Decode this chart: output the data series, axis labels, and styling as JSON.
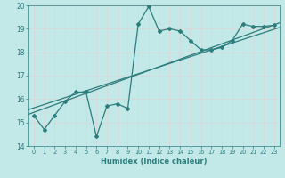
{
  "title": "",
  "xlabel": "Humidex (Indice chaleur)",
  "bg_color": "#c2e8e8",
  "grid_color": "#e8e8e8",
  "line_color": "#2d7d7d",
  "xlim": [
    -0.5,
    23.5
  ],
  "ylim": [
    14,
    20
  ],
  "xticks": [
    0,
    1,
    2,
    3,
    4,
    5,
    6,
    7,
    8,
    9,
    10,
    11,
    12,
    13,
    14,
    15,
    16,
    17,
    18,
    19,
    20,
    21,
    22,
    23
  ],
  "yticks": [
    14,
    15,
    16,
    17,
    18,
    19,
    20
  ],
  "scatter_x": [
    0,
    1,
    2,
    3,
    4,
    5,
    6,
    7,
    8,
    9,
    10,
    11,
    12,
    13,
    14,
    15,
    16,
    17,
    18,
    19,
    20,
    21,
    22,
    23
  ],
  "scatter_y": [
    15.3,
    14.7,
    15.3,
    15.9,
    16.3,
    16.3,
    14.4,
    15.7,
    15.8,
    15.6,
    19.2,
    19.95,
    18.9,
    19.0,
    18.9,
    18.5,
    18.1,
    18.1,
    18.2,
    18.5,
    19.2,
    19.1,
    19.1,
    19.15
  ],
  "reg_line1_x": [
    -0.5,
    23.5
  ],
  "reg_line1_y": [
    15.35,
    19.25
  ],
  "reg_line2_x": [
    -0.5,
    23.5
  ],
  "reg_line2_y": [
    15.55,
    19.05
  ]
}
